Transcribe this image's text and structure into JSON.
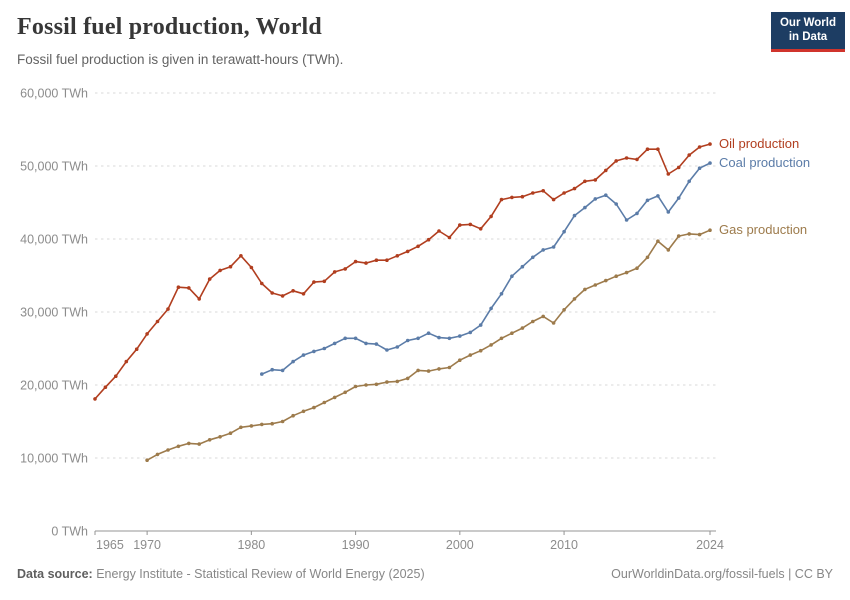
{
  "header": {
    "title": "Fossil fuel production, World",
    "subtitle": "Fossil fuel production is given in terawatt-hours (TWh).",
    "logo": {
      "line1": "Our World",
      "line2": "in Data",
      "bg_color": "#1d3d63",
      "accent_color": "#d0342c"
    }
  },
  "chart_data": {
    "type": "line",
    "title": "Fossil fuel production, World",
    "unit": "TWh",
    "grid": "dashed-horizontal",
    "legend_position": "end-of-line",
    "x_domain": [
      1965,
      2024
    ],
    "y_max": 60000,
    "y_ticks": [
      {
        "value": 0,
        "label": "0 TWh"
      },
      {
        "value": 10000,
        "label": "10,000 TWh"
      },
      {
        "value": 20000,
        "label": "20,000 TWh"
      },
      {
        "value": 30000,
        "label": "30,000 TWh"
      },
      {
        "value": 40000,
        "label": "40,000 TWh"
      },
      {
        "value": 50000,
        "label": "50,000 TWh"
      },
      {
        "value": 60000,
        "label": "60,000 TWh"
      }
    ],
    "x_ticks": [
      {
        "value": 1965,
        "label": "1965"
      },
      {
        "value": 1970,
        "label": "1970"
      },
      {
        "value": 1980,
        "label": "1980"
      },
      {
        "value": 1990,
        "label": "1990"
      },
      {
        "value": 2000,
        "label": "2000"
      },
      {
        "value": 2010,
        "label": "2010"
      },
      {
        "value": 2024,
        "label": "2024"
      }
    ],
    "series": [
      {
        "name": "Gas production",
        "color": "#9d7b4c",
        "start_year": 1970,
        "values": [
          9700,
          10500,
          11100,
          11600,
          12000,
          11900,
          12500,
          12900,
          13400,
          14200,
          14400,
          14600,
          14700,
          15000,
          15800,
          16400,
          16900,
          17600,
          18300,
          19000,
          19800,
          20000,
          20100,
          20400,
          20500,
          20900,
          22000,
          21900,
          22200,
          22400,
          23400,
          24100,
          24700,
          25500,
          26400,
          27100,
          27800,
          28700,
          29400,
          28500,
          30300,
          31800,
          33100,
          33700,
          34300,
          34900,
          35400,
          36000,
          37500,
          39700,
          38500,
          40400,
          40700,
          40600,
          41200
        ]
      },
      {
        "name": "Coal production",
        "color": "#5b7ca8",
        "start_year": 1981,
        "values": [
          21500,
          22100,
          22000,
          23200,
          24100,
          24600,
          25000,
          25700,
          26400,
          26400,
          25700,
          25600,
          24800,
          25200,
          26100,
          26400,
          27100,
          26500,
          26400,
          26700,
          27200,
          28200,
          30500,
          32500,
          34900,
          36200,
          37500,
          38500,
          38900,
          41000,
          43200,
          44300,
          45500,
          46000,
          44800,
          42600,
          43500,
          45300,
          45900,
          43700,
          45600,
          47900,
          49700,
          50400
        ]
      },
      {
        "name": "Oil production",
        "color": "#b13e1f",
        "start_year": 1965,
        "values": [
          18100,
          19700,
          21200,
          23200,
          24900,
          27000,
          28700,
          30400,
          33400,
          33300,
          31800,
          34500,
          35700,
          36200,
          37700,
          36100,
          33900,
          32600,
          32200,
          32900,
          32500,
          34100,
          34200,
          35500,
          35900,
          36900,
          36700,
          37100,
          37100,
          37700,
          38300,
          39000,
          39900,
          41100,
          40200,
          41900,
          42000,
          41400,
          43100,
          45400,
          45700,
          45800,
          46300,
          46600,
          45400,
          46300,
          46900,
          47900,
          48100,
          49400,
          50700,
          51100,
          50900,
          52300,
          52300,
          48900,
          49800,
          51500,
          52600,
          53000
        ]
      }
    ]
  },
  "footer": {
    "source_label": "Data source:",
    "source_text": "Energy Institute - Statistical Review of World Energy (2025)",
    "link_text": "OurWorldinData.org/fossil-fuels | CC BY"
  }
}
